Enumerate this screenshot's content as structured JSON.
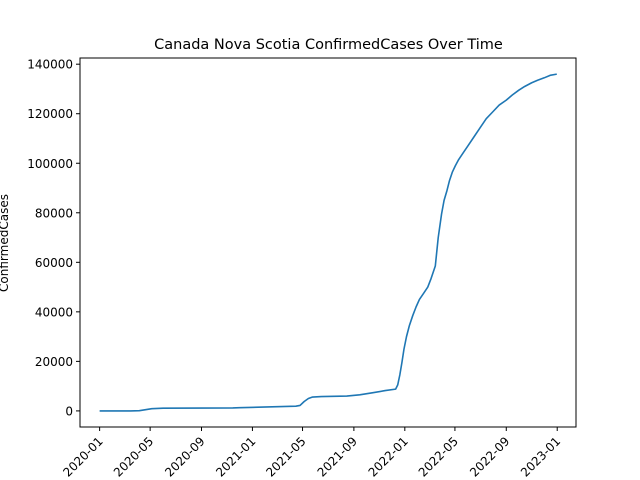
{
  "chart_data": {
    "type": "line",
    "title": "Canada Nova Scotia ConfirmedCases Over Time",
    "xlabel": "",
    "ylabel": "ConfirmedCases",
    "x_scale": "date",
    "xlim": [
      "2019-11-15",
      "2023-02-15"
    ],
    "ylim": [
      -6500,
      142500
    ],
    "grid": false,
    "legend": "none",
    "x_ticks": [
      "2020-01-01",
      "2020-05-01",
      "2020-09-01",
      "2021-01-01",
      "2021-05-01",
      "2021-09-01",
      "2022-01-01",
      "2022-05-01",
      "2022-09-01",
      "2023-01-01"
    ],
    "x_tick_labels": [
      "2020-01",
      "2020-05",
      "2020-09",
      "2021-01",
      "2021-05",
      "2021-09",
      "2022-01",
      "2022-05",
      "2022-09",
      "2023-01"
    ],
    "y_ticks": [
      0,
      20000,
      40000,
      60000,
      80000,
      100000,
      120000,
      140000
    ],
    "y_tick_labels": [
      "0",
      "20000",
      "40000",
      "60000",
      "80000",
      "100000",
      "120000",
      "140000"
    ],
    "series": [
      {
        "color": "#1f77b4",
        "x": [
          "2020-01-01",
          "2020-03-15",
          "2020-04-05",
          "2020-04-20",
          "2020-05-05",
          "2020-06-01",
          "2020-09-01",
          "2020-11-15",
          "2020-12-01",
          "2021-01-15",
          "2021-03-01",
          "2021-04-15",
          "2021-04-25",
          "2021-05-05",
          "2021-05-15",
          "2021-05-25",
          "2021-06-15",
          "2021-07-15",
          "2021-08-15",
          "2021-09-15",
          "2021-10-15",
          "2021-11-15",
          "2021-12-10",
          "2021-12-15",
          "2021-12-20",
          "2021-12-25",
          "2021-12-30",
          "2022-01-05",
          "2022-01-12",
          "2022-01-20",
          "2022-01-28",
          "2022-02-05",
          "2022-02-15",
          "2022-02-25",
          "2022-03-05",
          "2022-03-15",
          "2022-03-22",
          "2022-03-30",
          "2022-04-05",
          "2022-04-12",
          "2022-04-18",
          "2022-04-25",
          "2022-05-02",
          "2022-05-10",
          "2022-05-20",
          "2022-06-01",
          "2022-06-15",
          "2022-07-01",
          "2022-07-15",
          "2022-08-01",
          "2022-08-15",
          "2022-09-01",
          "2022-09-15",
          "2022-10-01",
          "2022-10-15",
          "2022-11-01",
          "2022-11-15",
          "2022-12-01",
          "2022-12-15",
          "2022-12-31"
        ],
        "values": [
          0,
          0,
          100,
          500,
          900,
          1100,
          1150,
          1200,
          1300,
          1500,
          1700,
          1900,
          2200,
          3800,
          5000,
          5600,
          5800,
          5900,
          6000,
          6500,
          7300,
          8200,
          8800,
          10500,
          14500,
          19500,
          25000,
          30000,
          34500,
          38500,
          42000,
          45000,
          47500,
          50000,
          53500,
          58500,
          70000,
          79500,
          85000,
          89000,
          93000,
          96500,
          99000,
          101500,
          104000,
          107000,
          110500,
          114500,
          118000,
          121000,
          123500,
          125500,
          127500,
          129500,
          131000,
          132500,
          133500,
          134500,
          135500,
          136000
        ]
      }
    ]
  }
}
